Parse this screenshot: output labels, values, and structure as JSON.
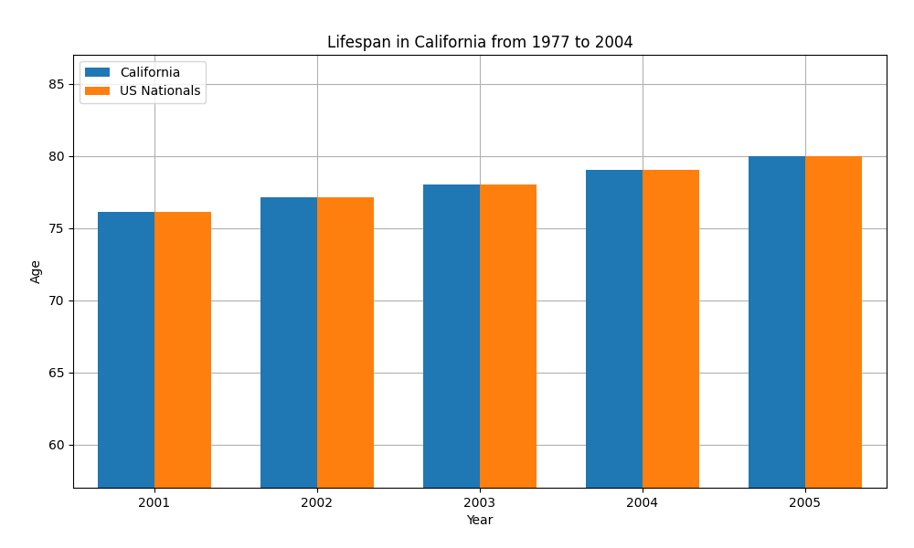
{
  "chart_data": {
    "type": "bar",
    "title": "Lifespan in California from 1977 to 2004",
    "x_label": "Year",
    "y_label": "Age",
    "categories": [
      "2001",
      "2002",
      "2003",
      "2004",
      "2005"
    ],
    "series": [
      {
        "name": "California",
        "values": [
          76.1,
          77.1,
          78.0,
          79.0,
          80.0
        ]
      },
      {
        "name": "US Nationals",
        "values": [
          76.1,
          77.1,
          78.0,
          79.0,
          80.0
        ]
      }
    ],
    "ylim": [
      57,
      87
    ],
    "yticks": [
      60,
      65,
      70,
      75,
      80,
      85
    ],
    "grid": true,
    "legend": "upper left"
  }
}
